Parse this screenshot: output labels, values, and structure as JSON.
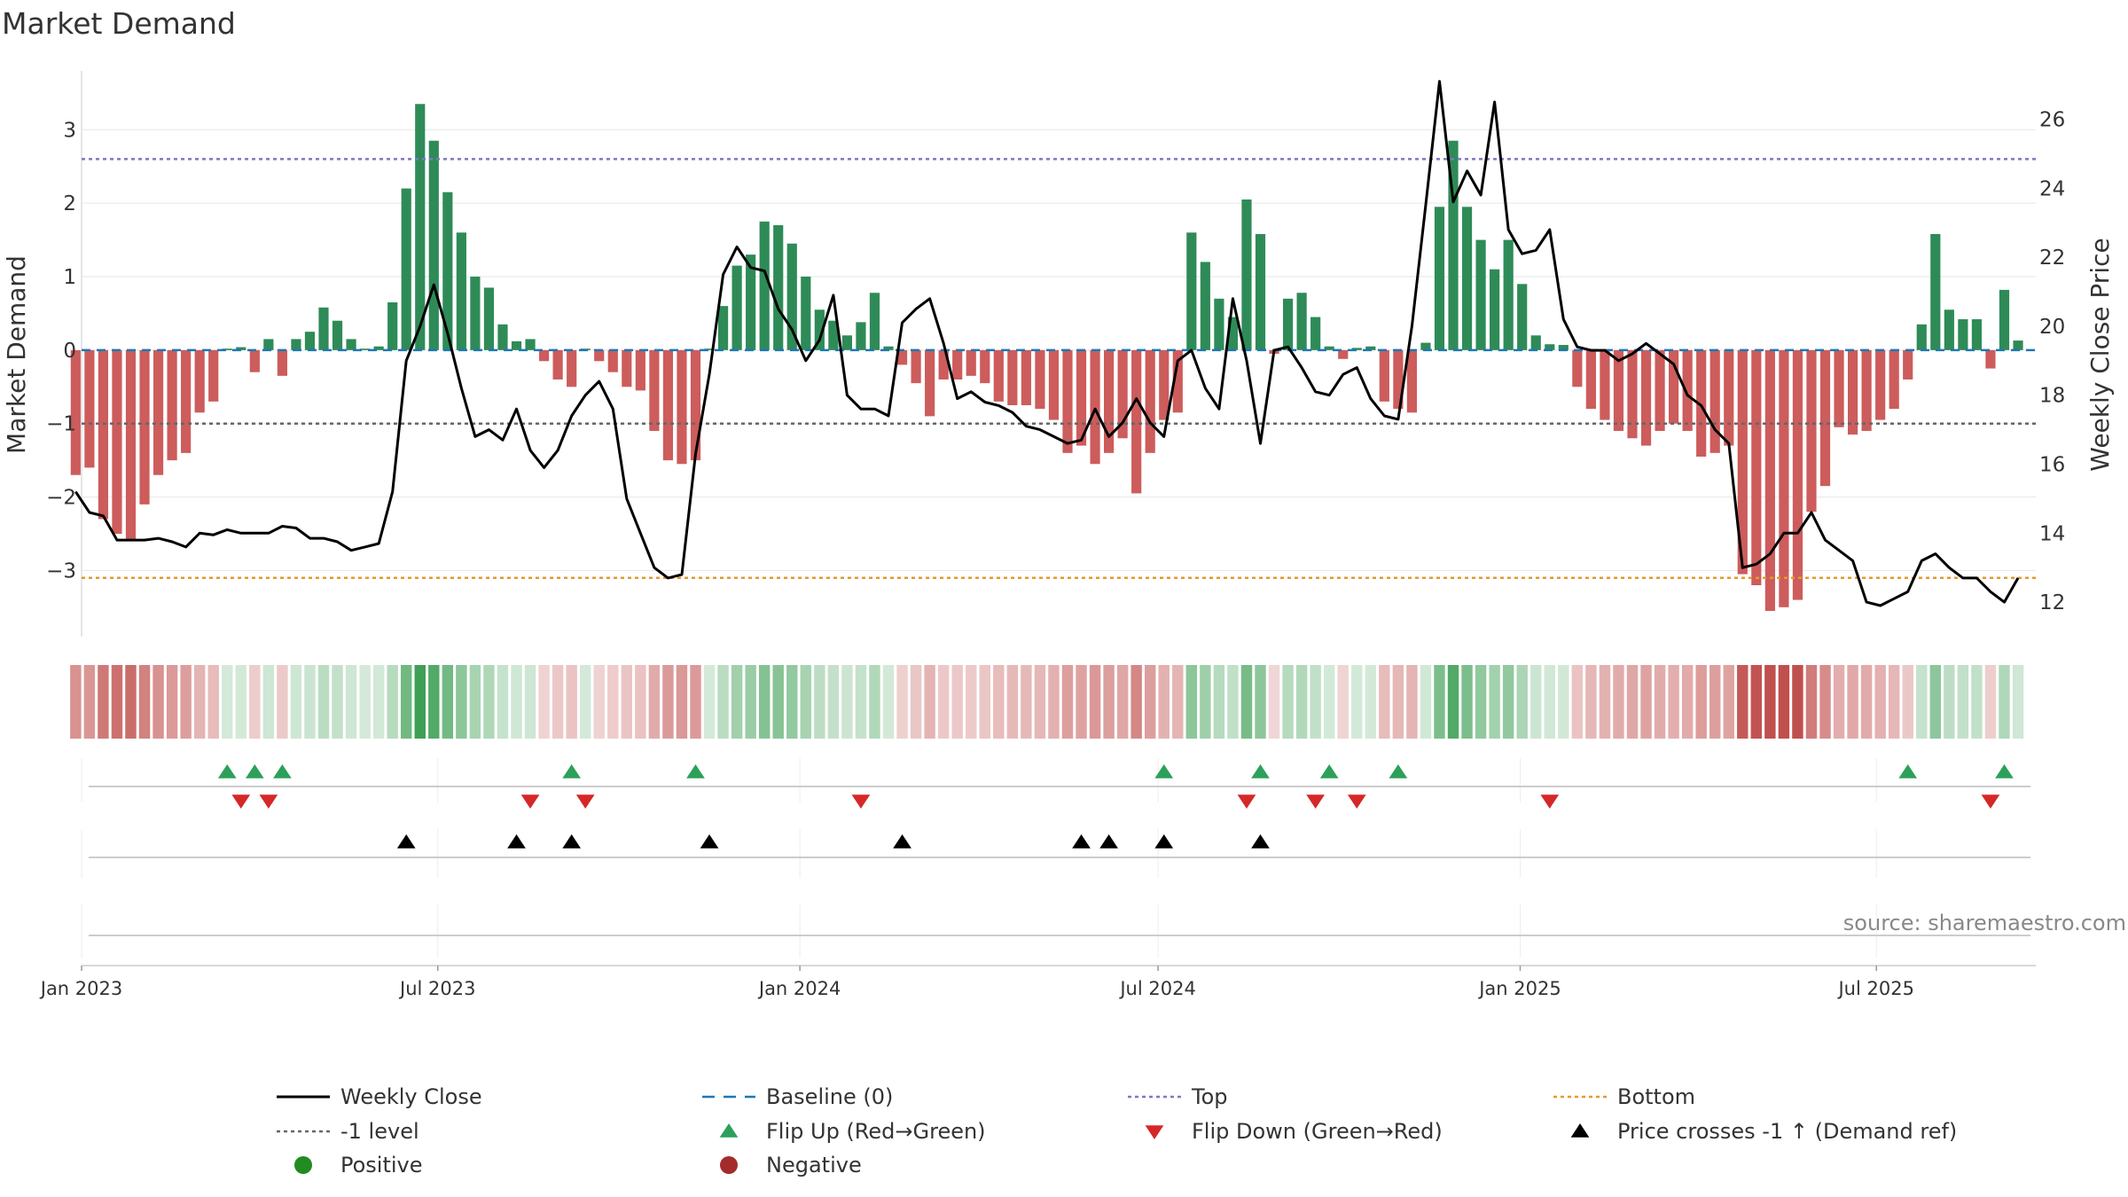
{
  "chart_data": {
    "type": "bar",
    "title": "Market Demand",
    "ylabel": "Market Demand",
    "y2label": "Weekly Close Price",
    "ylim": [
      -3.9,
      3.8
    ],
    "y2lim": [
      11,
      27.4
    ],
    "yticks": [
      -3,
      -2,
      -1,
      0,
      1,
      2,
      3
    ],
    "y2ticks": [
      12,
      14,
      16,
      18,
      20,
      22,
      24,
      26
    ],
    "date_start": "2023-01-01",
    "date_end": "2025-09-20",
    "first_week": "2022-12-29",
    "week_count": 142,
    "xticks": [
      {
        "date": "2023-01-01",
        "label": "Jan 2023"
      },
      {
        "date": "2023-07-01",
        "label": "Jul 2023"
      },
      {
        "date": "2024-01-01",
        "label": "Jan 2024"
      },
      {
        "date": "2024-07-01",
        "label": "Jul 2024"
      },
      {
        "date": "2025-01-01",
        "label": "Jan 2025"
      },
      {
        "date": "2025-07-01",
        "label": "Jul 2025"
      }
    ],
    "reference_lines": [
      {
        "name": "Top",
        "value": 2.6,
        "color": "#7b79c4"
      },
      {
        "name": "-1 level",
        "value": -1,
        "color": "#666666"
      },
      {
        "name": "Bottom",
        "value": -3.1,
        "color": "#e39a2c"
      }
    ],
    "demand_segments": [
      [
        0,
        -1.7
      ],
      [
        1,
        -1.6
      ],
      [
        2,
        -2.3
      ],
      [
        3,
        -2.5
      ],
      [
        4,
        -2.6
      ],
      [
        5,
        -2.1
      ],
      [
        6,
        -1.7
      ],
      [
        7,
        -1.5
      ],
      [
        8,
        -1.4
      ],
      [
        9,
        -0.85
      ],
      [
        10,
        -0.7
      ],
      [
        11,
        0.02
      ],
      [
        12,
        0.04
      ],
      [
        13,
        -0.3
      ],
      [
        14,
        0.15
      ],
      [
        15,
        -0.35
      ],
      [
        16,
        0.15
      ],
      [
        17,
        0.25
      ],
      [
        18,
        0.58
      ],
      [
        19,
        0.4
      ],
      [
        20,
        0.15
      ],
      [
        21,
        0.02
      ],
      [
        22,
        0.05
      ],
      [
        23,
        0.65
      ],
      [
        24,
        2.2
      ],
      [
        25,
        3.35
      ],
      [
        26,
        2.85
      ],
      [
        27,
        2.15
      ],
      [
        28,
        1.6
      ],
      [
        29,
        1.0
      ],
      [
        30,
        0.85
      ],
      [
        31,
        0.35
      ],
      [
        32,
        0.12
      ],
      [
        33,
        0.15
      ],
      [
        34,
        -0.15
      ],
      [
        35,
        -0.4
      ],
      [
        36,
        -0.5
      ],
      [
        37,
        0.02
      ],
      [
        38,
        -0.15
      ],
      [
        39,
        -0.3
      ],
      [
        40,
        -0.5
      ],
      [
        41,
        -0.55
      ],
      [
        42,
        -1.1
      ],
      [
        43,
        -1.5
      ],
      [
        44,
        -1.55
      ],
      [
        45,
        -1.5
      ],
      [
        46,
        0.02
      ],
      [
        47,
        0.6
      ],
      [
        48,
        1.15
      ],
      [
        49,
        1.3
      ],
      [
        50,
        1.75
      ],
      [
        51,
        1.7
      ],
      [
        52,
        1.45
      ],
      [
        53,
        1.0
      ],
      [
        54,
        0.55
      ],
      [
        55,
        0.4
      ],
      [
        56,
        0.2
      ],
      [
        57,
        0.38
      ],
      [
        58,
        0.78
      ],
      [
        59,
        0.05
      ],
      [
        60,
        -0.2
      ],
      [
        61,
        -0.45
      ],
      [
        62,
        -0.9
      ],
      [
        63,
        -0.4
      ],
      [
        64,
        -0.4
      ],
      [
        65,
        -0.35
      ],
      [
        66,
        -0.45
      ],
      [
        67,
        -0.7
      ],
      [
        68,
        -0.75
      ],
      [
        69,
        -0.75
      ],
      [
        70,
        -0.8
      ],
      [
        71,
        -0.95
      ],
      [
        72,
        -1.4
      ],
      [
        73,
        -1.3
      ],
      [
        74,
        -1.55
      ],
      [
        75,
        -1.4
      ],
      [
        76,
        -1.2
      ],
      [
        77,
        -1.95
      ],
      [
        78,
        -1.4
      ],
      [
        79,
        -0.95
      ],
      [
        80,
        -0.85
      ],
      [
        81,
        1.6
      ],
      [
        82,
        1.2
      ],
      [
        83,
        0.7
      ],
      [
        84,
        0.45
      ],
      [
        85,
        2.05
      ],
      [
        86,
        1.58
      ],
      [
        87,
        -0.05
      ],
      [
        88,
        0.7
      ],
      [
        89,
        0.78
      ],
      [
        90,
        0.45
      ],
      [
        91,
        0.05
      ],
      [
        92,
        -0.12
      ],
      [
        93,
        0.03
      ],
      [
        94,
        0.05
      ],
      [
        95,
        -0.7
      ],
      [
        96,
        -0.8
      ],
      [
        97,
        -0.85
      ],
      [
        98,
        0.1
      ],
      [
        99,
        1.95
      ],
      [
        100,
        2.85
      ],
      [
        101,
        1.95
      ],
      [
        102,
        1.5
      ],
      [
        103,
        1.1
      ],
      [
        104,
        1.5
      ],
      [
        105,
        0.9
      ],
      [
        106,
        0.2
      ],
      [
        107,
        0.08
      ],
      [
        108,
        0.07
      ],
      [
        109,
        -0.5
      ],
      [
        110,
        -0.8
      ],
      [
        111,
        -0.95
      ],
      [
        112,
        -1.1
      ],
      [
        113,
        -1.2
      ],
      [
        114,
        -1.3
      ],
      [
        115,
        -1.1
      ],
      [
        116,
        -1.0
      ],
      [
        117,
        -1.1
      ],
      [
        118,
        -1.45
      ],
      [
        119,
        -1.4
      ],
      [
        120,
        -1.3
      ],
      [
        121,
        -3.05
      ],
      [
        122,
        -3.2
      ],
      [
        123,
        -3.55
      ],
      [
        124,
        -3.5
      ],
      [
        125,
        -3.4
      ],
      [
        126,
        -2.2
      ],
      [
        127,
        -1.85
      ],
      [
        128,
        -1.05
      ],
      [
        129,
        -1.15
      ],
      [
        130,
        -1.1
      ],
      [
        131,
        -0.95
      ],
      [
        132,
        -0.8
      ],
      [
        133,
        -0.4
      ],
      [
        134,
        0.35
      ],
      [
        135,
        1.58
      ],
      [
        136,
        0.55
      ],
      [
        137,
        0.42
      ],
      [
        138,
        0.42
      ],
      [
        139,
        -0.25
      ],
      [
        140,
        0.82
      ],
      [
        141,
        0.13
      ]
    ],
    "close_price": [
      [
        0,
        15.2
      ],
      [
        1,
        14.6
      ],
      [
        2,
        14.5
      ],
      [
        3,
        13.8
      ],
      [
        4,
        13.8
      ],
      [
        5,
        13.8
      ],
      [
        6,
        13.85
      ],
      [
        7,
        13.75
      ],
      [
        8,
        13.6
      ],
      [
        9,
        14.0
      ],
      [
        10,
        13.95
      ],
      [
        11,
        14.1
      ],
      [
        12,
        14.0
      ],
      [
        13,
        14.0
      ],
      [
        14,
        14.0
      ],
      [
        15,
        14.2
      ],
      [
        16,
        14.15
      ],
      [
        17,
        13.85
      ],
      [
        18,
        13.85
      ],
      [
        19,
        13.75
      ],
      [
        20,
        13.5
      ],
      [
        21,
        13.6
      ],
      [
        22,
        13.7
      ],
      [
        23,
        15.2
      ],
      [
        24,
        19.0
      ],
      [
        25,
        20.0
      ],
      [
        26,
        21.2
      ],
      [
        27,
        19.8
      ],
      [
        28,
        18.2
      ],
      [
        29,
        16.8
      ],
      [
        30,
        17.0
      ],
      [
        31,
        16.7
      ],
      [
        32,
        17.6
      ],
      [
        33,
        16.4
      ],
      [
        34,
        15.9
      ],
      [
        35,
        16.4
      ],
      [
        36,
        17.4
      ],
      [
        37,
        18.0
      ],
      [
        38,
        18.4
      ],
      [
        39,
        17.6
      ],
      [
        40,
        15.0
      ],
      [
        41,
        14.0
      ],
      [
        42,
        13.0
      ],
      [
        43,
        12.7
      ],
      [
        44,
        12.8
      ],
      [
        45,
        16.3
      ],
      [
        46,
        18.6
      ],
      [
        47,
        21.5
      ],
      [
        48,
        22.3
      ],
      [
        49,
        21.7
      ],
      [
        50,
        21.6
      ],
      [
        51,
        20.5
      ],
      [
        52,
        19.9
      ],
      [
        53,
        19.0
      ],
      [
        54,
        19.6
      ],
      [
        55,
        20.9
      ],
      [
        56,
        18.0
      ],
      [
        57,
        17.6
      ],
      [
        58,
        17.6
      ],
      [
        59,
        17.4
      ],
      [
        60,
        20.1
      ],
      [
        61,
        20.5
      ],
      [
        62,
        20.8
      ],
      [
        63,
        19.5
      ],
      [
        64,
        17.9
      ],
      [
        65,
        18.1
      ],
      [
        66,
        17.8
      ],
      [
        67,
        17.7
      ],
      [
        68,
        17.5
      ],
      [
        69,
        17.1
      ],
      [
        70,
        17.0
      ],
      [
        71,
        16.8
      ],
      [
        72,
        16.6
      ],
      [
        73,
        16.7
      ],
      [
        74,
        17.6
      ],
      [
        75,
        16.8
      ],
      [
        76,
        17.2
      ],
      [
        77,
        17.9
      ],
      [
        78,
        17.2
      ],
      [
        79,
        16.8
      ],
      [
        80,
        19.0
      ],
      [
        81,
        19.3
      ],
      [
        82,
        18.2
      ],
      [
        83,
        17.6
      ],
      [
        84,
        20.8
      ],
      [
        85,
        19.0
      ],
      [
        86,
        16.6
      ],
      [
        87,
        19.3
      ],
      [
        88,
        19.4
      ],
      [
        89,
        18.8
      ],
      [
        90,
        18.1
      ],
      [
        91,
        18.0
      ],
      [
        92,
        18.6
      ],
      [
        93,
        18.8
      ],
      [
        94,
        17.9
      ],
      [
        95,
        17.4
      ],
      [
        96,
        17.3
      ],
      [
        97,
        20.0
      ],
      [
        98,
        23.5
      ],
      [
        99,
        27.1
      ],
      [
        100,
        23.6
      ],
      [
        101,
        24.5
      ],
      [
        102,
        23.8
      ],
      [
        103,
        26.5
      ],
      [
        104,
        22.8
      ],
      [
        105,
        22.1
      ],
      [
        106,
        22.2
      ],
      [
        107,
        22.8
      ],
      [
        108,
        20.2
      ],
      [
        109,
        19.4
      ],
      [
        110,
        19.3
      ],
      [
        111,
        19.3
      ],
      [
        112,
        19.0
      ],
      [
        113,
        19.2
      ],
      [
        114,
        19.5
      ],
      [
        115,
        19.2
      ],
      [
        116,
        18.9
      ],
      [
        117,
        18.0
      ],
      [
        118,
        17.7
      ],
      [
        119,
        17.0
      ],
      [
        120,
        16.6
      ],
      [
        121,
        13.0
      ],
      [
        122,
        13.1
      ],
      [
        123,
        13.4
      ],
      [
        124,
        14.0
      ],
      [
        125,
        14.0
      ],
      [
        126,
        14.6
      ],
      [
        127,
        13.8
      ],
      [
        128,
        13.5
      ],
      [
        129,
        13.2
      ],
      [
        130,
        12.0
      ],
      [
        131,
        11.9
      ],
      [
        132,
        12.1
      ],
      [
        133,
        12.3
      ],
      [
        134,
        13.2
      ],
      [
        135,
        13.4
      ],
      [
        136,
        13.0
      ],
      [
        137,
        12.7
      ],
      [
        138,
        12.7
      ],
      [
        139,
        12.3
      ],
      [
        140,
        12.0
      ],
      [
        141,
        12.7
      ]
    ],
    "flip_up_weeks": [
      11,
      13,
      15,
      36,
      45,
      79,
      86,
      91,
      96,
      133,
      140
    ],
    "flip_down_weeks": [
      12,
      14,
      33,
      37,
      57,
      85,
      90,
      93,
      107,
      139
    ],
    "price_cross_weeks": [
      24,
      32,
      36,
      46,
      60,
      73,
      75,
      79,
      86
    ],
    "source_note": "source: sharemaestro.com",
    "legend": [
      {
        "label": "Weekly Close",
        "kind": "line",
        "color": "#000000"
      },
      {
        "label": "Baseline (0)",
        "kind": "dashed",
        "color": "#1f77b4"
      },
      {
        "label": "Top",
        "kind": "dotted",
        "color": "#7b79c4"
      },
      {
        "label": "Bottom",
        "kind": "dotted",
        "color": "#e39a2c"
      },
      {
        "label": "-1 level",
        "kind": "dotted",
        "color": "#666666"
      },
      {
        "label": "Flip Up (Red→Green)",
        "kind": "triangle-up",
        "color": "#2ca05a"
      },
      {
        "label": "Flip Down (Green→Red)",
        "kind": "triangle-down",
        "color": "#d62728"
      },
      {
        "label": "Price crosses -1 ↑ (Demand ref)",
        "kind": "triangle-up",
        "color": "#000000"
      },
      {
        "label": "Positive",
        "kind": "circle",
        "color": "#228b22"
      },
      {
        "label": "Negative",
        "kind": "circle",
        "color": "#a52a2a"
      }
    ],
    "colors": {
      "positive_bar": "#2e8b57",
      "negative_bar": "#cd5c5c",
      "price_line": "#000000",
      "baseline": "#1f77b4",
      "gridline": "#e6e6e6",
      "flip_up": "#2ca05a",
      "flip_down": "#d62728",
      "price_cross": "#000000",
      "source_text": "#888888"
    }
  }
}
